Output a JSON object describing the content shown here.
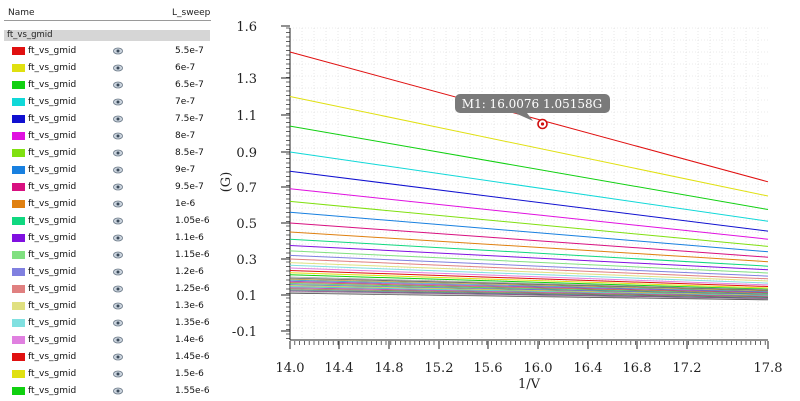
{
  "legend": {
    "name_header": "Name",
    "value_header": "L_sweep",
    "group_label": "ft_vs_gmid",
    "rows": [
      {
        "name": "ft_vs_gmid",
        "value": "5.5e-7",
        "color": "#e01010"
      },
      {
        "name": "ft_vs_gmid",
        "value": "6e-7",
        "color": "#e0e010"
      },
      {
        "name": "ft_vs_gmid",
        "value": "6.5e-7",
        "color": "#10d010"
      },
      {
        "name": "ft_vs_gmid",
        "value": "7e-7",
        "color": "#10d8d8"
      },
      {
        "name": "ft_vs_gmid",
        "value": "7.5e-7",
        "color": "#1010d0"
      },
      {
        "name": "ft_vs_gmid",
        "value": "8e-7",
        "color": "#e010e0"
      },
      {
        "name": "ft_vs_gmid",
        "value": "8.5e-7",
        "color": "#80e010"
      },
      {
        "name": "ft_vs_gmid",
        "value": "9e-7",
        "color": "#1880e0"
      },
      {
        "name": "ft_vs_gmid",
        "value": "9.5e-7",
        "color": "#d81080"
      },
      {
        "name": "ft_vs_gmid",
        "value": "1e-6",
        "color": "#e08010"
      },
      {
        "name": "ft_vs_gmid",
        "value": "1.05e-6",
        "color": "#10d880"
      },
      {
        "name": "ft_vs_gmid",
        "value": "1.1e-6",
        "color": "#8010e0"
      },
      {
        "name": "ft_vs_gmid",
        "value": "1.15e-6",
        "color": "#80e080"
      },
      {
        "name": "ft_vs_gmid",
        "value": "1.2e-6",
        "color": "#8080e0"
      },
      {
        "name": "ft_vs_gmid",
        "value": "1.25e-6",
        "color": "#e08080"
      },
      {
        "name": "ft_vs_gmid",
        "value": "1.3e-6",
        "color": "#e0e080"
      },
      {
        "name": "ft_vs_gmid",
        "value": "1.35e-6",
        "color": "#80e0e0"
      },
      {
        "name": "ft_vs_gmid",
        "value": "1.4e-6",
        "color": "#e080e0"
      },
      {
        "name": "ft_vs_gmid",
        "value": "1.45e-6",
        "color": "#e01010"
      },
      {
        "name": "ft_vs_gmid",
        "value": "1.5e-6",
        "color": "#e0e010"
      },
      {
        "name": "ft_vs_gmid",
        "value": "1.55e-6",
        "color": "#10d010"
      }
    ]
  },
  "plot": {
    "xlabel": "1/V",
    "ylabel": "(G)",
    "x_ticks": [
      "14.0",
      "14.4",
      "14.8",
      "15.2",
      "15.6",
      "16.0",
      "16.4",
      "16.8",
      "17.2",
      "17.8"
    ],
    "y_ticks": [
      "1.6",
      "1.3",
      "1.1",
      "0.9",
      "0.7",
      "0.5",
      "0.3",
      "0.1",
      "-0.1"
    ],
    "marker_label": "M1: 16.0076 1.05158G",
    "marker_x": 16.0076,
    "marker_y": 1.05158,
    "extra_trace_colors": [
      "#a0a0a0",
      "#606060",
      "#c0a040",
      "#40a0c0",
      "#a040c0",
      "#c06040",
      "#40c060",
      "#6060c0",
      "#c0c040",
      "#40c0c0",
      "#c040a0",
      "#808040",
      "#408080",
      "#804080",
      "#b0b0b0",
      "#505050"
    ]
  },
  "chart_data": {
    "type": "line",
    "xlabel": "1/V",
    "ylabel": "(G)",
    "xlim": [
      14.0,
      17.8
    ],
    "ylim": [
      -0.1,
      1.6
    ],
    "y_scale": "log-like",
    "legend_placement": "left panel",
    "series_note": "ft_vs_gmid swept over L_sweep; each trace decreases with 1/V",
    "series": [
      {
        "name": "5.5e-7",
        "x": [
          14.0,
          17.8
        ],
        "y": [
          1.45,
          0.73
        ]
      },
      {
        "name": "6e-7",
        "x": [
          14.0,
          17.8
        ],
        "y": [
          1.2,
          0.65
        ]
      },
      {
        "name": "6.5e-7",
        "x": [
          14.0,
          17.8
        ],
        "y": [
          1.04,
          0.575
        ]
      },
      {
        "name": "7e-7",
        "x": [
          14.0,
          17.8
        ],
        "y": [
          0.9,
          0.51
        ]
      },
      {
        "name": "7.5e-7",
        "x": [
          14.0,
          17.8
        ],
        "y": [
          0.79,
          0.455
        ]
      },
      {
        "name": "8e-7",
        "x": [
          14.0,
          17.8
        ],
        "y": [
          0.69,
          0.41
        ]
      },
      {
        "name": "8.5e-7",
        "x": [
          14.0,
          17.8
        ],
        "y": [
          0.62,
          0.37
        ]
      },
      {
        "name": "9e-7",
        "x": [
          14.0,
          17.8
        ],
        "y": [
          0.56,
          0.34
        ]
      },
      {
        "name": "9.5e-7",
        "x": [
          14.0,
          17.8
        ],
        "y": [
          0.5,
          0.31
        ]
      },
      {
        "name": "1e-6",
        "x": [
          14.0,
          17.8
        ],
        "y": [
          0.45,
          0.285
        ]
      },
      {
        "name": "1.05e-6",
        "x": [
          14.0,
          17.8
        ],
        "y": [
          0.41,
          0.26
        ]
      },
      {
        "name": "1.1e-6",
        "x": [
          14.0,
          17.8
        ],
        "y": [
          0.375,
          0.24
        ]
      },
      {
        "name": "1.15e-6",
        "x": [
          14.0,
          17.8
        ],
        "y": [
          0.345,
          0.222
        ]
      },
      {
        "name": "1.2e-6",
        "x": [
          14.0,
          17.8
        ],
        "y": [
          0.32,
          0.205
        ]
      },
      {
        "name": "1.25e-6",
        "x": [
          14.0,
          17.8
        ],
        "y": [
          0.3,
          0.19
        ]
      },
      {
        "name": "1.3e-6",
        "x": [
          14.0,
          17.8
        ],
        "y": [
          0.28,
          0.178
        ]
      },
      {
        "name": "1.35e-6",
        "x": [
          14.0,
          17.8
        ],
        "y": [
          0.265,
          0.166
        ]
      },
      {
        "name": "1.4e-6",
        "x": [
          14.0,
          17.8
        ],
        "y": [
          0.25,
          0.156
        ]
      },
      {
        "name": "1.45e-6",
        "x": [
          14.0,
          17.8
        ],
        "y": [
          0.236,
          0.147
        ]
      },
      {
        "name": "1.5e-6",
        "x": [
          14.0,
          17.8
        ],
        "y": [
          0.224,
          0.139
        ]
      },
      {
        "name": "1.55e-6",
        "x": [
          14.0,
          17.8
        ],
        "y": [
          0.212,
          0.132
        ]
      }
    ]
  }
}
